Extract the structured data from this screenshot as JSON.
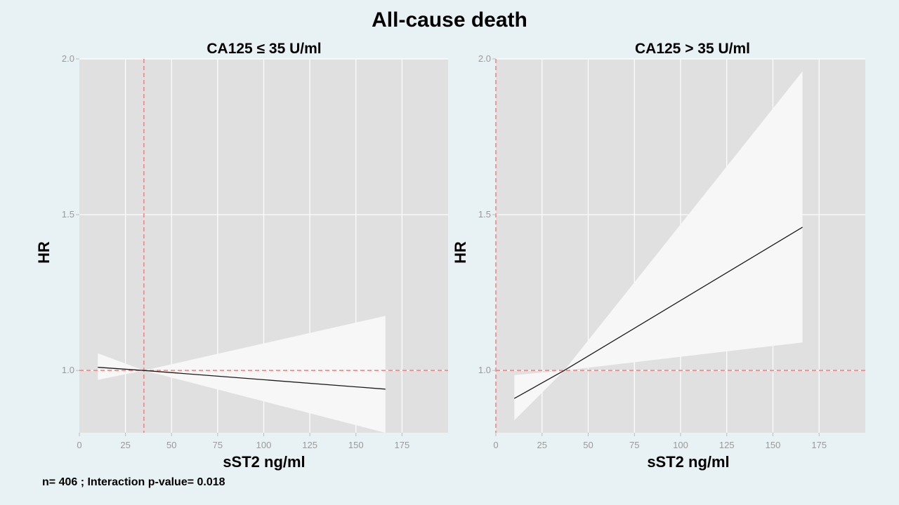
{
  "figure": {
    "title": "All-cause death",
    "footnote": "n= 406 ; Interaction p-value= 0.018"
  },
  "colors": {
    "background": "#e8f1f3",
    "panel": "#e0e0e0",
    "grid": "#ffffff",
    "band": "#f7f7f7",
    "line": "#1a1a1a",
    "reference": "#f08080",
    "tick_text": "#9a9a9a"
  },
  "chart_data": [
    {
      "type": "line",
      "title": "CA125 ≤ 35 U/ml",
      "xlabel": "sST2 ng/ml",
      "ylabel": "HR",
      "xlim": [
        0,
        200
      ],
      "ylim": [
        0.8,
        2.0
      ],
      "xticks": [
        0,
        25,
        50,
        75,
        100,
        125,
        150,
        175
      ],
      "xtick_labels": [
        "0",
        "25",
        "50",
        "75",
        "100",
        "125",
        "150",
        "175"
      ],
      "yticks": [
        1.0,
        1.5,
        2.0
      ],
      "ytick_labels": [
        "1.0",
        "1.5",
        "2.0"
      ],
      "series": [
        {
          "name": "HR",
          "x": [
            10,
            35,
            166
          ],
          "y": [
            1.01,
            1.0,
            0.94
          ]
        }
      ],
      "ci_band": {
        "x": [
          10,
          35,
          166
        ],
        "lower": [
          0.97,
          1.0,
          0.8
        ],
        "upper": [
          1.055,
          1.0,
          1.175
        ]
      },
      "ref_x": 35,
      "ref_y": 1.0,
      "grid": true
    },
    {
      "type": "line",
      "title": "CA125 > 35 U/ml",
      "xlabel": "sST2 ng/ml",
      "ylabel": "HR",
      "xlim": [
        0,
        200
      ],
      "ylim": [
        0.8,
        2.0
      ],
      "xticks": [
        0,
        25,
        50,
        75,
        100,
        125,
        150,
        175
      ],
      "xtick_labels": [
        "0",
        "25",
        "50",
        "75",
        "100",
        "125",
        "150",
        "175"
      ],
      "yticks": [
        1.0,
        1.5,
        2.0
      ],
      "ytick_labels": [
        "1.0",
        "1.5",
        "2.0"
      ],
      "series": [
        {
          "name": "HR",
          "x": [
            10,
            37,
            166
          ],
          "y": [
            0.91,
            1.0,
            1.46
          ]
        }
      ],
      "ci_band": {
        "x": [
          10,
          37,
          166
        ],
        "lower": [
          0.84,
          1.0,
          1.09
        ],
        "upper": [
          0.985,
          1.0,
          1.96
        ]
      },
      "ref_x": 0,
      "ref_y": 1.0,
      "grid": true
    }
  ]
}
